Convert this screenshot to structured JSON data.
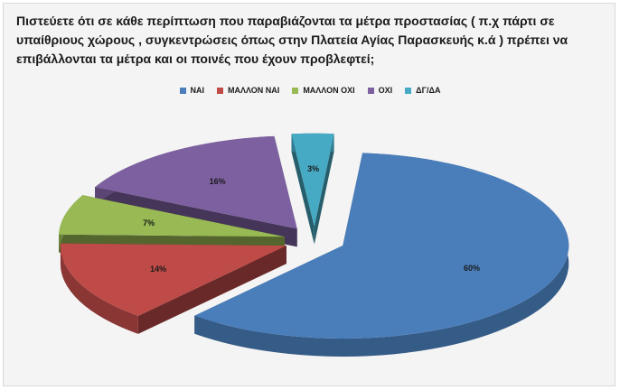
{
  "question": {
    "lines": [
      "Πιστεύετε ότι σε κάθε περίπτωση που παραβιάζονται τα μέτρα προστασίας ( π.χ πάρτι σε",
      "υπαίθριους χώρους , συγκεντρώσεις όπως στην Πλατεία Αγίας Παρασκευής κ.ά ) πρέπει να",
      "επιβάλλονται τα μέτρα και οι ποινές που έχουν προβλεφτεί;"
    ]
  },
  "chart_data": {
    "type": "pie",
    "style": "3d-exploded",
    "title": "",
    "legend_position": "top",
    "categories": [
      "ΝΑΙ",
      "ΜΑΛΛΟΝ ΝΑΙ",
      "ΜΑΛΛΟΝ ΟΧΙ",
      "ΟΧΙ",
      "ΔΓ/ΔΑ"
    ],
    "values": [
      60,
      14,
      7,
      16,
      3
    ],
    "labels": [
      "60%",
      "14%",
      "7%",
      "16%",
      "3%"
    ],
    "colors": [
      "#4a7ebb",
      "#be4b48",
      "#98b954",
      "#7d60a0",
      "#46aac5"
    ]
  }
}
